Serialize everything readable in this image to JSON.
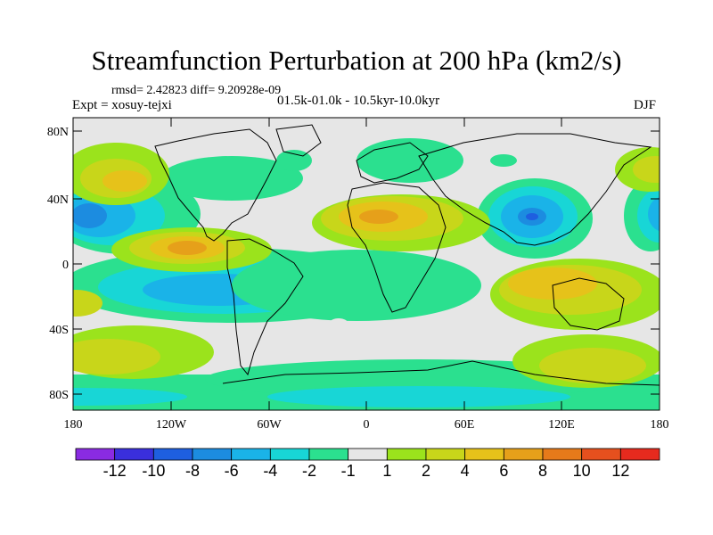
{
  "title": "Streamfunction Perturbation at 200 hPa (km2/s)",
  "stats": "rmsd= 2.42823 diff= 9.20928e-09",
  "expt": "Expt = xosuy-tejxi",
  "period": "01.5k-01.0k - 10.5kyr-10.0kyr",
  "season": "DJF",
  "lat_labels": [
    "80N",
    "40N",
    "0",
    "40S",
    "80S"
  ],
  "lon_labels": [
    "180",
    "120W",
    "60W",
    "0",
    "60E",
    "120E",
    "180"
  ],
  "colorbar": {
    "colors": [
      "#8a2be2",
      "#3a2fdc",
      "#1e5fe0",
      "#1c8ce0",
      "#1ab3e8",
      "#18d6d6",
      "#2be08f",
      "#e6e6e6",
      "#9be31c",
      "#c8d61a",
      "#e6c21a",
      "#e6a01a",
      "#e67a1a",
      "#e6501e",
      "#e62a1e"
    ],
    "labels": [
      "-12",
      "-10",
      "-8",
      "-6",
      "-4",
      "-2",
      "-1",
      "1",
      "2",
      "4",
      "6",
      "8",
      "10",
      "12"
    ]
  },
  "palette": {
    "neutral": "#e6e6e6",
    "green": "#2be08f",
    "cyan": "#18d6d6",
    "lightblue": "#1ab3e8",
    "blue": "#1c8ce0",
    "deepblue": "#1e5fe0",
    "lime": "#9be31c",
    "yellow": "#c8d61a",
    "gold": "#e6c21a",
    "orange": "#e6a01a",
    "darkorange": "#e67a1a"
  },
  "chart_data": {
    "type": "heatmap",
    "title": "Streamfunction Perturbation at 200 hPa (km2/s)",
    "projection": "cylindrical equidistant",
    "lon_range": [
      -180,
      180
    ],
    "lat_range": [
      -90,
      90
    ],
    "contour_levels": [
      -12,
      -10,
      -8,
      -6,
      -4,
      -2,
      -1,
      1,
      2,
      4,
      6,
      8,
      10,
      12
    ],
    "features": [
      {
        "region": "NE Pacific 40N 160W",
        "value": 4
      },
      {
        "region": "Central Pacific 35N 180",
        "value": -6
      },
      {
        "region": "East Pacific 10N 115W",
        "value": 6
      },
      {
        "region": "East Pacific 10S 110W",
        "value": -6
      },
      {
        "region": "North Africa 30N 20E",
        "value": 6
      },
      {
        "region": "East Asia 35N 105E",
        "value": -8
      },
      {
        "region": "Indonesia/Australia 15S 110E",
        "value": 6
      },
      {
        "region": "South Pacific 55S 150E",
        "value": 4
      },
      {
        "region": "South Atlantic 50S 20W",
        "value": -2
      },
      {
        "region": "Antarctic belt 75S",
        "value": -2
      }
    ]
  }
}
